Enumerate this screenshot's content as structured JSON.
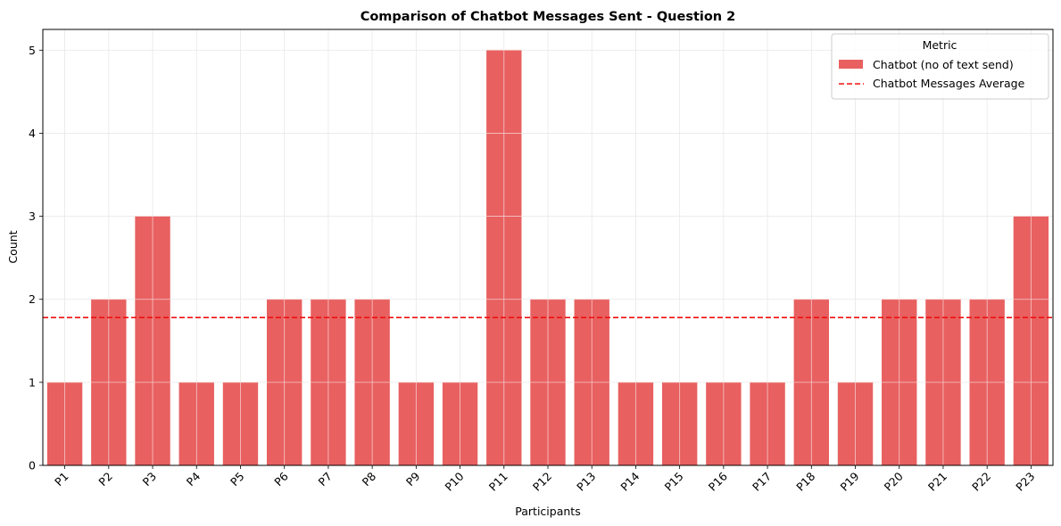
{
  "chart_data": {
    "type": "bar",
    "title": "Comparison of Chatbot Messages Sent - Question 2",
    "xlabel": "Participants",
    "ylabel": "Count",
    "categories": [
      "P1",
      "P2",
      "P3",
      "P4",
      "P5",
      "P6",
      "P7",
      "P8",
      "P9",
      "P10",
      "P11",
      "P12",
      "P13",
      "P14",
      "P15",
      "P16",
      "P17",
      "P18",
      "P19",
      "P20",
      "P21",
      "P22",
      "P23"
    ],
    "series": [
      {
        "name": "Chatbot (no of text send)",
        "values": [
          1,
          2,
          3,
          1,
          1,
          2,
          2,
          2,
          1,
          1,
          5,
          2,
          2,
          1,
          1,
          1,
          1,
          2,
          1,
          2,
          2,
          2,
          3
        ],
        "color": "#e86060"
      }
    ],
    "average_line": {
      "name": "Chatbot Messages Average",
      "value": 1.78,
      "color": "#ee1111",
      "style": "dashed"
    },
    "yticks": [
      "0",
      "1",
      "2",
      "3",
      "4",
      "5"
    ],
    "ylim": [
      0,
      5.25
    ],
    "grid": true,
    "legend": {
      "title": "Metric",
      "position": "top-right"
    }
  }
}
